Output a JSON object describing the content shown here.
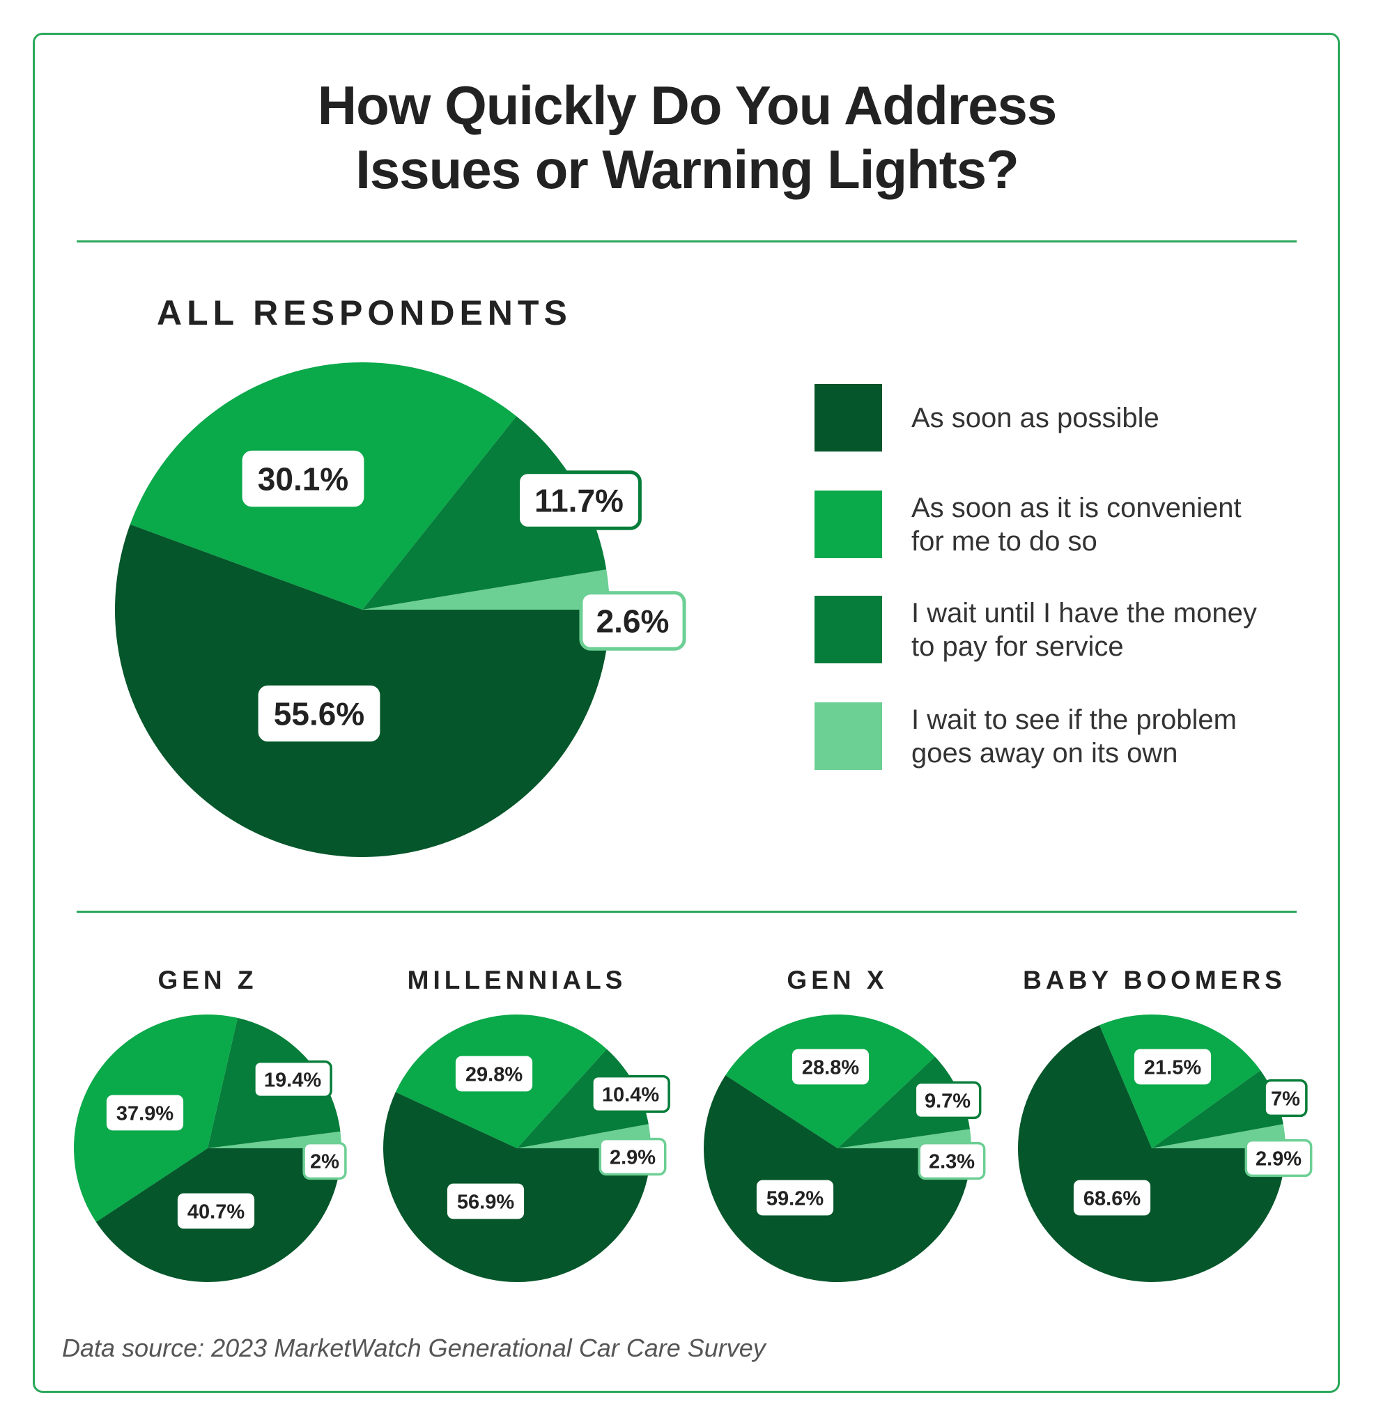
{
  "title_line1": "How Quickly Do You Address",
  "title_line2": "Issues or Warning Lights?",
  "colors": {
    "as_soon_as_possible": "#05562a",
    "convenient": "#0aa94a",
    "wait_money": "#067d3a",
    "wait_see": "#6ccf94",
    "frame": "#2aa85a"
  },
  "legend": [
    {
      "label": "As soon as possible",
      "color": "#05562a"
    },
    {
      "label": "As soon as it is convenient for me to do so",
      "color": "#0aa94a"
    },
    {
      "label": "I wait until I have the money to pay for service",
      "color": "#067d3a"
    },
    {
      "label": "I wait to see if the problem goes away on its own",
      "color": "#6ccf94"
    }
  ],
  "source": "Data source: 2023 MarketWatch Generational Car Care Survey",
  "chart_data": [
    {
      "type": "pie",
      "title": "ALL RESPONDENTS",
      "categories": [
        "I wait to see if the problem goes away on its own",
        "I wait until I have the money to pay for service",
        "As soon as it is convenient for me to do so",
        "As soon as possible"
      ],
      "values": [
        2.6,
        11.7,
        30.1,
        55.6
      ],
      "labels": [
        "2.6%",
        "11.7%",
        "30.1%",
        "55.6%"
      ]
    },
    {
      "type": "pie",
      "title": "GEN Z",
      "values": [
        2,
        19.4,
        37.9,
        40.7
      ],
      "labels": [
        "2%",
        "19.4%",
        "37.9%",
        "40.7%"
      ]
    },
    {
      "type": "pie",
      "title": "MILLENNIALS",
      "values": [
        2.9,
        10.4,
        29.8,
        56.9
      ],
      "labels": [
        "2.9%",
        "10.4%",
        "29.8%",
        "56.9%"
      ]
    },
    {
      "type": "pie",
      "title": "GEN X",
      "values": [
        2.3,
        9.7,
        28.8,
        59.2
      ],
      "labels": [
        "2.3%",
        "9.7%",
        "28.8%",
        "59.2%"
      ]
    },
    {
      "type": "pie",
      "title": "BABY BOOMERS",
      "values": [
        2.9,
        7,
        21.5,
        68.6
      ],
      "labels": [
        "2.9%",
        "7%",
        "21.5%",
        "68.6%"
      ]
    }
  ]
}
